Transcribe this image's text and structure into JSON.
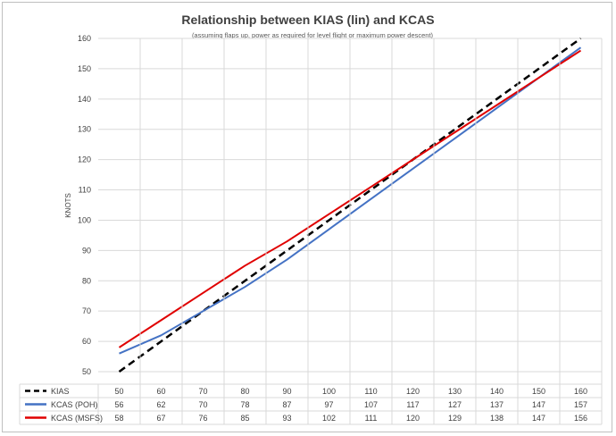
{
  "chart_data": {
    "type": "line",
    "title": "Relationship between KIAS (lin) and KCAS",
    "subtitle": "(assuming flaps up, power as required for level flight or maximum power descent)",
    "xlabel": "",
    "ylabel": "KNOTS",
    "ylim": [
      50,
      160
    ],
    "yticks": [
      50,
      60,
      70,
      80,
      90,
      100,
      110,
      120,
      130,
      140,
      150,
      160
    ],
    "grid": true,
    "legend": "data-table",
    "categories": [
      50,
      60,
      70,
      80,
      90,
      100,
      110,
      120,
      130,
      140,
      150,
      160
    ],
    "series": [
      {
        "name": "KIAS",
        "color": "#000000",
        "dash": "dashed",
        "values": [
          50,
          60,
          70,
          80,
          90,
          100,
          110,
          120,
          130,
          140,
          150,
          160
        ]
      },
      {
        "name": "KCAS (POH)",
        "color": "#4472c4",
        "dash": "solid",
        "values": [
          56,
          62,
          70,
          78,
          87,
          97,
          107,
          117,
          127,
          137,
          147,
          157
        ]
      },
      {
        "name": "KCAS (MSFS)",
        "color": "#e00000",
        "dash": "solid",
        "values": [
          58,
          67,
          76,
          85,
          93,
          102,
          111,
          120,
          129,
          138,
          147,
          156
        ]
      }
    ]
  }
}
